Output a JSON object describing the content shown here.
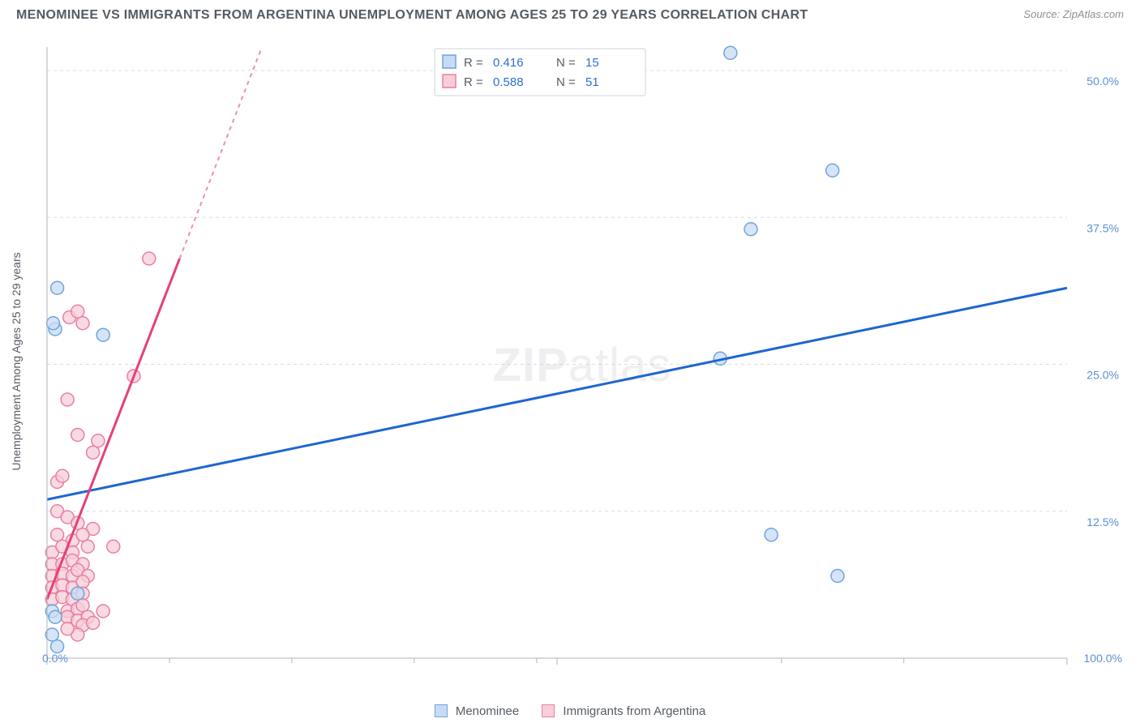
{
  "title": "MENOMINEE VS IMMIGRANTS FROM ARGENTINA UNEMPLOYMENT AMONG AGES 25 TO 29 YEARS CORRELATION CHART",
  "source_label": "Source:",
  "source_name": "ZipAtlas.com",
  "y_axis_label": "Unemployment Among Ages 25 to 29 years",
  "watermark_a": "ZIP",
  "watermark_b": "atlas",
  "chart": {
    "type": "scatter",
    "xlim": [
      0,
      100
    ],
    "ylim": [
      0,
      52
    ],
    "x_ticks": [
      0,
      50,
      100
    ],
    "x_tick_labels": [
      "0.0%",
      "",
      "100.0%"
    ],
    "x_minor_ticks": [
      12,
      24,
      36,
      48,
      72,
      84
    ],
    "y_ticks": [
      12.5,
      25.0,
      37.5,
      50.0
    ],
    "y_tick_labels": [
      "12.5%",
      "25.0%",
      "37.5%",
      "50.0%"
    ],
    "grid_color": "#d8dde2",
    "axis_color": "#aeb4bc",
    "tick_label_color": "#5c8fd6",
    "background_color": "#ffffff",
    "marker_radius": 8,
    "series": [
      {
        "name": "Menominee",
        "color_fill": "#c7dcf4",
        "color_stroke": "#6fa3dd",
        "R": "0.416",
        "N": "15",
        "trend": {
          "x1": 0,
          "y1": 13.5,
          "x2": 100,
          "y2": 31.5,
          "color": "#1e66d0"
        },
        "points": [
          [
            1.0,
            31.5
          ],
          [
            0.8,
            28.0
          ],
          [
            0.6,
            28.5
          ],
          [
            5.5,
            27.5
          ],
          [
            0.5,
            4.0
          ],
          [
            0.8,
            3.5
          ],
          [
            1.0,
            1.0
          ],
          [
            0.5,
            2.0
          ],
          [
            67.0,
            51.5
          ],
          [
            77.0,
            41.5
          ],
          [
            69.0,
            36.5
          ],
          [
            66.0,
            25.5
          ],
          [
            71.0,
            10.5
          ],
          [
            77.5,
            7.0
          ],
          [
            3.0,
            5.5
          ]
        ]
      },
      {
        "name": "Immigrants from Argentina",
        "color_fill": "#f6cdd8",
        "color_stroke": "#e97fa0",
        "R": "0.588",
        "N": "51",
        "trend": {
          "x1": 0,
          "y1": 5.0,
          "x2": 13,
          "y2": 34.0,
          "color": "#e64079",
          "extend_to_y": 52
        },
        "points": [
          [
            10.0,
            34.0
          ],
          [
            2.2,
            29.0
          ],
          [
            3.0,
            29.5
          ],
          [
            3.5,
            28.5
          ],
          [
            8.5,
            24.0
          ],
          [
            2.0,
            22.0
          ],
          [
            3.0,
            19.0
          ],
          [
            4.5,
            17.5
          ],
          [
            5.0,
            18.5
          ],
          [
            1.0,
            15.0
          ],
          [
            1.5,
            15.5
          ],
          [
            1.0,
            12.5
          ],
          [
            2.0,
            12.0
          ],
          [
            3.0,
            11.5
          ],
          [
            4.5,
            11.0
          ],
          [
            1.0,
            10.5
          ],
          [
            2.5,
            10.0
          ],
          [
            3.5,
            10.5
          ],
          [
            0.5,
            9.0
          ],
          [
            1.5,
            9.5
          ],
          [
            2.5,
            9.0
          ],
          [
            4.0,
            9.5
          ],
          [
            6.5,
            9.5
          ],
          [
            0.5,
            8.0
          ],
          [
            1.5,
            8.0
          ],
          [
            2.5,
            8.3
          ],
          [
            3.5,
            8.0
          ],
          [
            0.5,
            7.0
          ],
          [
            1.5,
            7.2
          ],
          [
            2.5,
            7.0
          ],
          [
            3.0,
            7.5
          ],
          [
            4.0,
            7.0
          ],
          [
            0.5,
            6.0
          ],
          [
            1.5,
            6.2
          ],
          [
            2.5,
            6.0
          ],
          [
            3.5,
            6.5
          ],
          [
            0.5,
            5.0
          ],
          [
            1.5,
            5.2
          ],
          [
            2.5,
            5.0
          ],
          [
            3.5,
            5.5
          ],
          [
            2.0,
            4.0
          ],
          [
            3.0,
            4.2
          ],
          [
            5.5,
            4.0
          ],
          [
            3.5,
            4.5
          ],
          [
            2.0,
            3.5
          ],
          [
            3.0,
            3.2
          ],
          [
            4.0,
            3.5
          ],
          [
            3.5,
            2.8
          ],
          [
            4.5,
            3.0
          ],
          [
            3.0,
            2.0
          ],
          [
            2.0,
            2.5
          ]
        ]
      }
    ]
  },
  "legend_top": {
    "r_label": "R =",
    "n_label": "N =",
    "text_color": "#555b63",
    "value_color": "#2f6fd0"
  },
  "legend_bottom": [
    {
      "label": "Menominee",
      "fill": "#c7dcf4",
      "stroke": "#6fa3dd"
    },
    {
      "label": "Immigrants from Argentina",
      "fill": "#f6cdd8",
      "stroke": "#e97fa0"
    }
  ]
}
